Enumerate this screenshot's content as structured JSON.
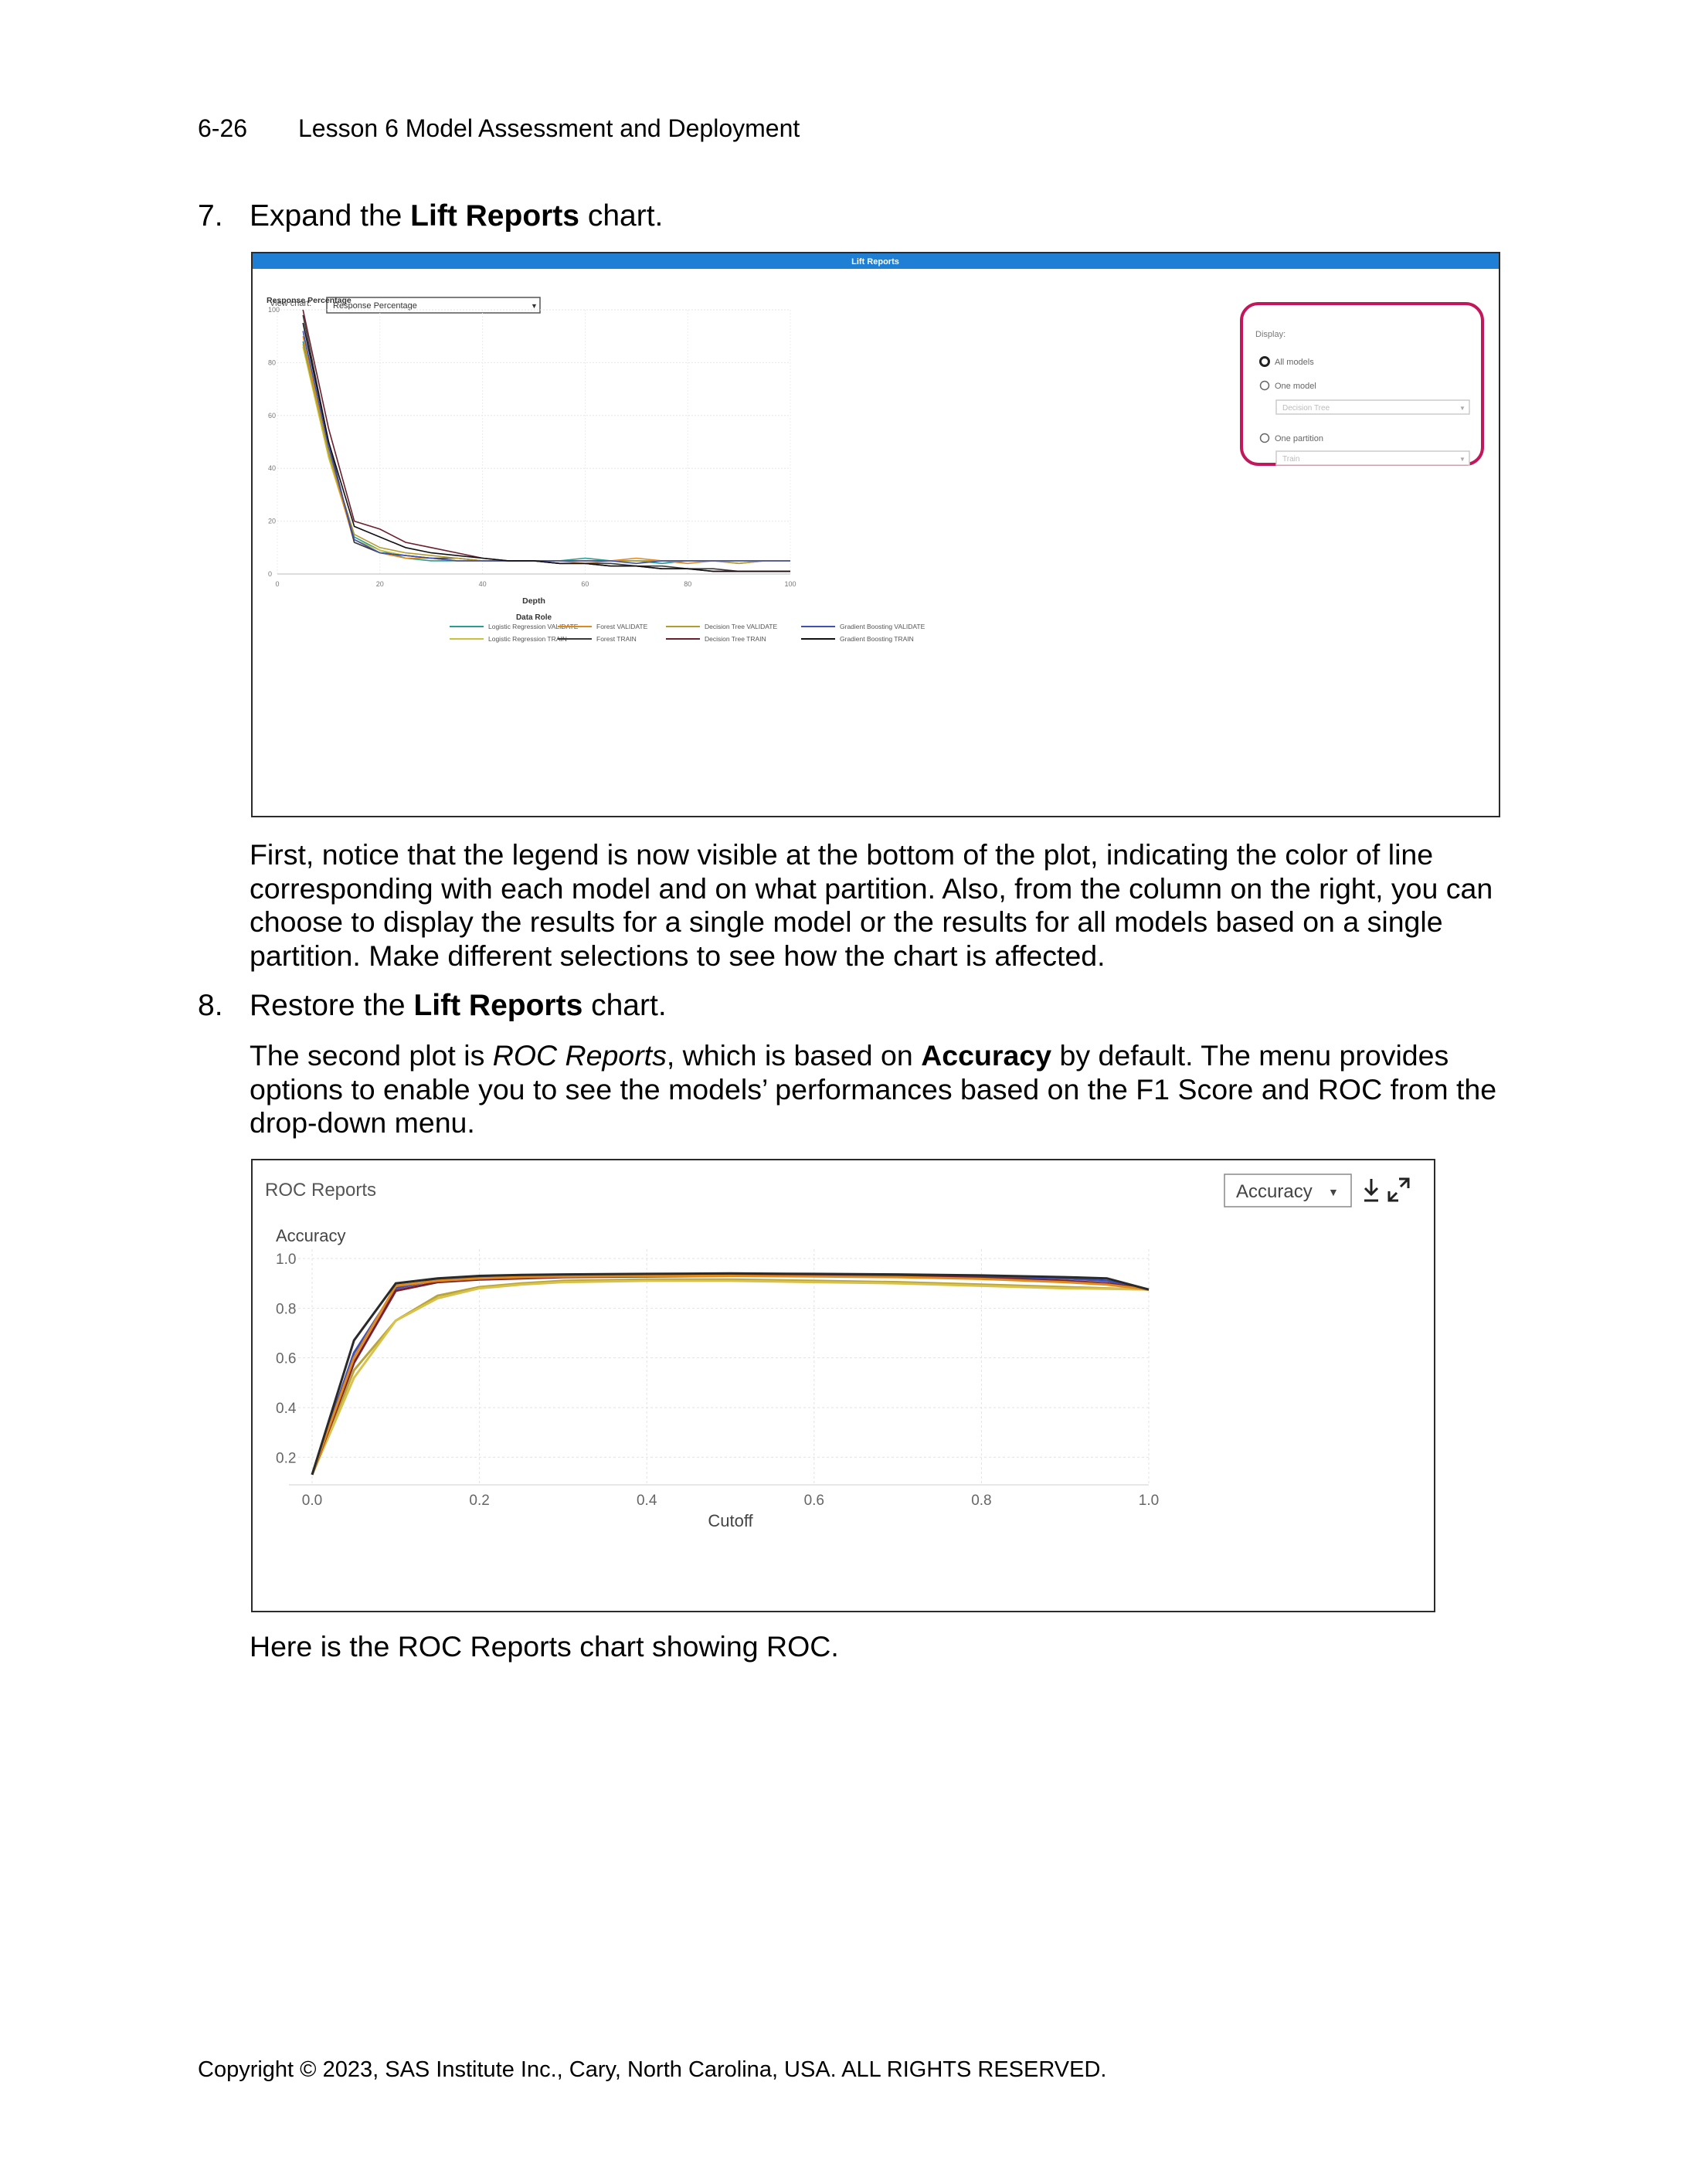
{
  "header": {
    "page_number": "6-26",
    "lesson": "Lesson 6  Model Assessment and Deployment"
  },
  "step7": {
    "number": "7.",
    "prefix": "Expand the ",
    "bold": "Lift Reports",
    "suffix": " chart."
  },
  "lift_panel": {
    "title": "Lift Reports",
    "view_chart_label": "View chart:",
    "view_chart_value": "Response Percentage",
    "display_label": "Display:",
    "options": [
      "All models",
      "One model",
      "One partition"
    ],
    "selected_option": "All models",
    "model_select": "Decision Tree",
    "partition_select": "Train",
    "highlight_color": "#c2185b"
  },
  "para1": "First, notice that the legend is now visible at the bottom of the plot, indicating the color of line corresponding with each model and on what partition. Also, from the column on the right, you can choose to display the results for a single model or the results for all models based on a single partition. Make different selections to see how the chart is affected.",
  "step8": {
    "number": "8.",
    "prefix": "Restore the ",
    "bold": "Lift Reports",
    "suffix": " chart."
  },
  "para2": {
    "t1": "The second plot is ",
    "italic": "ROC Reports",
    "t2": ", which is based on ",
    "bold": "Accuracy",
    "t3": " by default. The menu provides options to enable you to see the models’ performances based on the F1 Score and ROC from the drop-down menu."
  },
  "roc_panel": {
    "title": "ROC Reports",
    "dropdown": "Accuracy",
    "icons": [
      "download-icon",
      "expand-icon"
    ]
  },
  "para3": "Here is the ROC Reports chart showing ROC.",
  "footer": "Copyright © 2023, SAS Institute Inc., Cary, North Carolina, USA. ALL RIGHTS RESERVED.",
  "chart_data": [
    {
      "type": "line",
      "ylabel": "Response Percentage",
      "xlabel": "Depth",
      "x_ticks": [
        "0",
        "20",
        "40",
        "60",
        "80",
        "100"
      ],
      "y_ticks": [
        "0",
        "20",
        "40",
        "60",
        "80",
        "100"
      ],
      "xlim": [
        0,
        100
      ],
      "ylim": [
        0,
        100
      ],
      "legend_title": "Data Role",
      "legend_position": "bottom",
      "x": [
        5,
        10,
        15,
        20,
        25,
        30,
        35,
        40,
        45,
        50,
        55,
        60,
        65,
        70,
        75,
        80,
        85,
        90,
        95,
        100
      ],
      "series": [
        {
          "name": "Logistic Regression VALIDATE",
          "color": "#2a9d8f",
          "values": [
            88,
            45,
            14,
            9,
            6,
            5,
            5,
            5,
            5,
            5,
            5,
            6,
            5,
            5,
            4,
            5,
            5,
            5,
            5,
            5
          ]
        },
        {
          "name": "Logistic Regression TRAIN",
          "color": "#c9c23a",
          "values": [
            86,
            44,
            13,
            9,
            7,
            6,
            5,
            5,
            5,
            5,
            5,
            5,
            5,
            5,
            5,
            5,
            5,
            5,
            5,
            5
          ]
        },
        {
          "name": "Forest VALIDATE",
          "color": "#e08a1e",
          "values": [
            90,
            46,
            12,
            8,
            6,
            6,
            5,
            5,
            5,
            5,
            5,
            4,
            5,
            6,
            5,
            4,
            5,
            4,
            5,
            5
          ]
        },
        {
          "name": "Forest TRAIN",
          "color": "#3a3a3a",
          "values": [
            98,
            50,
            12,
            8,
            7,
            6,
            6,
            5,
            5,
            5,
            4,
            4,
            4,
            3,
            3,
            2,
            2,
            1,
            1,
            1
          ]
        },
        {
          "name": "Decision Tree VALIDATE",
          "color": "#b39c2e",
          "values": [
            87,
            46,
            15,
            10,
            8,
            7,
            6,
            5,
            5,
            5,
            5,
            5,
            5,
            5,
            5,
            5,
            5,
            4,
            5,
            5
          ]
        },
        {
          "name": "Decision Tree TRAIN",
          "color": "#6b1f2e",
          "values": [
            100,
            55,
            20,
            17,
            12,
            10,
            8,
            6,
            5,
            5,
            4,
            4,
            3,
            3,
            2,
            2,
            1,
            1,
            1,
            1
          ]
        },
        {
          "name": "Gradient Boosting VALIDATE",
          "color": "#3f51b5",
          "values": [
            92,
            48,
            13,
            8,
            7,
            6,
            5,
            5,
            5,
            5,
            5,
            5,
            5,
            4,
            5,
            5,
            5,
            5,
            5,
            5
          ]
        },
        {
          "name": "Gradient Boosting TRAIN",
          "color": "#111111",
          "values": [
            95,
            50,
            18,
            14,
            10,
            8,
            7,
            6,
            5,
            5,
            4,
            4,
            3,
            3,
            2,
            2,
            1,
            1,
            1,
            1
          ]
        }
      ]
    },
    {
      "type": "line",
      "ylabel": "Accuracy",
      "xlabel": "Cutoff",
      "x_ticks": [
        "0.0",
        "0.2",
        "0.4",
        "0.6",
        "0.8",
        "1.0"
      ],
      "y_ticks": [
        "0.2",
        "0.4",
        "0.6",
        "0.8",
        "1.0"
      ],
      "xlim": [
        0,
        1
      ],
      "ylim": [
        0.12,
        1.0
      ],
      "x": [
        0,
        0.05,
        0.1,
        0.15,
        0.2,
        0.25,
        0.3,
        0.4,
        0.5,
        0.6,
        0.7,
        0.8,
        0.9,
        0.95,
        1.0
      ],
      "series": [
        {
          "color": "#b8a43a",
          "values": [
            0.13,
            0.55,
            0.75,
            0.85,
            0.885,
            0.9,
            0.91,
            0.915,
            0.915,
            0.91,
            0.905,
            0.895,
            0.885,
            0.88,
            0.875
          ]
        },
        {
          "color": "#d9c24a",
          "values": [
            0.13,
            0.52,
            0.75,
            0.84,
            0.88,
            0.895,
            0.905,
            0.91,
            0.91,
            0.905,
            0.9,
            0.89,
            0.88,
            0.878,
            0.875
          ]
        },
        {
          "color": "#3f51b5",
          "values": [
            0.13,
            0.62,
            0.88,
            0.915,
            0.925,
            0.93,
            0.932,
            0.934,
            0.935,
            0.934,
            0.932,
            0.928,
            0.92,
            0.91,
            0.875
          ]
        },
        {
          "color": "#7a1f2b",
          "values": [
            0.13,
            0.58,
            0.87,
            0.905,
            0.915,
            0.92,
            0.925,
            0.928,
            0.93,
            0.93,
            0.928,
            0.922,
            0.91,
            0.9,
            0.875
          ]
        },
        {
          "color": "#e08a1e",
          "values": [
            0.13,
            0.6,
            0.89,
            0.91,
            0.92,
            0.925,
            0.928,
            0.93,
            0.93,
            0.928,
            0.925,
            0.918,
            0.905,
            0.895,
            0.875
          ]
        },
        {
          "color": "#2a2a2a",
          "values": [
            0.13,
            0.67,
            0.9,
            0.92,
            0.93,
            0.934,
            0.936,
            0.938,
            0.94,
            0.938,
            0.936,
            0.932,
            0.925,
            0.92,
            0.875
          ]
        }
      ]
    }
  ]
}
